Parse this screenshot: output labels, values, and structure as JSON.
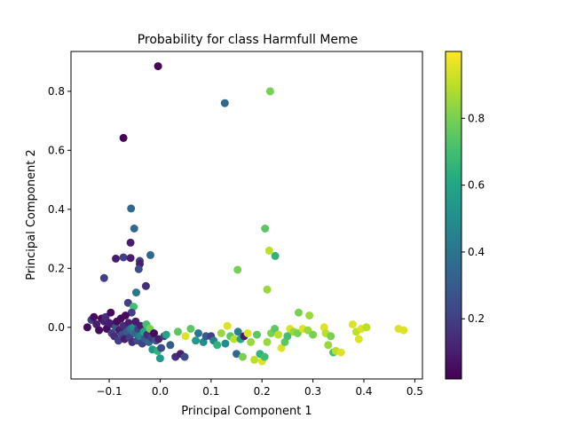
{
  "chart_data": {
    "type": "scatter",
    "title": "Probability for class Harmfull Meme",
    "xlabel": "Principal Component 1",
    "ylabel": "Principal Component 2",
    "xlim": [
      -0.175,
      0.515
    ],
    "ylim": [
      -0.175,
      0.935
    ],
    "xticks": [
      -0.1,
      0.0,
      0.1,
      0.2,
      0.3,
      0.4,
      0.5
    ],
    "xtick_labels": [
      "−0.1",
      "0.0",
      "0.1",
      "0.2",
      "0.3",
      "0.4",
      "0.5"
    ],
    "yticks": [
      0.0,
      0.2,
      0.4,
      0.6,
      0.8
    ],
    "ytick_labels": [
      "0.0",
      "0.2",
      "0.4",
      "0.6",
      "0.8"
    ],
    "colorbar": {
      "colormap": "viridis",
      "range": [
        0.02,
        1.0
      ],
      "ticks": [
        0.2,
        0.4,
        0.6,
        0.8
      ],
      "tick_labels": [
        "0.2",
        "0.4",
        "0.6",
        "0.8"
      ]
    },
    "grid": false,
    "points": [
      {
        "x": -0.004,
        "y": 0.885,
        "c": 0.03
      },
      {
        "x": 0.127,
        "y": 0.76,
        "c": 0.35
      },
      {
        "x": 0.216,
        "y": 0.8,
        "c": 0.8
      },
      {
        "x": -0.072,
        "y": 0.642,
        "c": 0.03
      },
      {
        "x": -0.057,
        "y": 0.403,
        "c": 0.35
      },
      {
        "x": -0.051,
        "y": 0.335,
        "c": 0.35
      },
      {
        "x": -0.058,
        "y": 0.287,
        "c": 0.1
      },
      {
        "x": -0.087,
        "y": 0.233,
        "c": 0.1
      },
      {
        "x": -0.072,
        "y": 0.237,
        "c": 0.2
      },
      {
        "x": -0.058,
        "y": 0.235,
        "c": 0.1
      },
      {
        "x": -0.04,
        "y": 0.225,
        "c": 0.2
      },
      {
        "x": -0.04,
        "y": 0.215,
        "c": 0.1
      },
      {
        "x": -0.042,
        "y": 0.197,
        "c": 0.25
      },
      {
        "x": -0.019,
        "y": 0.245,
        "c": 0.35
      },
      {
        "x": -0.11,
        "y": 0.167,
        "c": 0.2
      },
      {
        "x": -0.028,
        "y": 0.14,
        "c": 0.15
      },
      {
        "x": -0.047,
        "y": 0.118,
        "c": 0.4
      },
      {
        "x": -0.063,
        "y": 0.083,
        "c": 0.2
      },
      {
        "x": -0.052,
        "y": 0.07,
        "c": 0.7
      },
      {
        "x": -0.056,
        "y": 0.05,
        "c": 0.2
      },
      {
        "x": 0.206,
        "y": 0.335,
        "c": 0.75
      },
      {
        "x": 0.214,
        "y": 0.26,
        "c": 0.9
      },
      {
        "x": 0.226,
        "y": 0.242,
        "c": 0.65
      },
      {
        "x": 0.152,
        "y": 0.195,
        "c": 0.8
      },
      {
        "x": 0.21,
        "y": 0.128,
        "c": 0.85
      },
      {
        "x": 0.272,
        "y": 0.05,
        "c": 0.8
      },
      {
        "x": 0.293,
        "y": 0.04,
        "c": 0.85
      },
      {
        "x": -0.143,
        "y": 0.0,
        "c": 0.05
      },
      {
        "x": -0.135,
        "y": 0.025,
        "c": 0.2
      },
      {
        "x": -0.13,
        "y": 0.035,
        "c": 0.05
      },
      {
        "x": -0.125,
        "y": 0.01,
        "c": 0.1
      },
      {
        "x": -0.12,
        "y": -0.01,
        "c": 0.05
      },
      {
        "x": -0.115,
        "y": 0.03,
        "c": 0.05
      },
      {
        "x": -0.11,
        "y": 0.02,
        "c": 0.1
      },
      {
        "x": -0.107,
        "y": 0.035,
        "c": 0.15
      },
      {
        "x": -0.105,
        "y": -0.005,
        "c": 0.05
      },
      {
        "x": -0.1,
        "y": 0.015,
        "c": 0.1
      },
      {
        "x": -0.097,
        "y": 0.05,
        "c": 0.05
      },
      {
        "x": -0.095,
        "y": -0.02,
        "c": 0.2
      },
      {
        "x": -0.093,
        "y": 0.01,
        "c": 0.1
      },
      {
        "x": -0.09,
        "y": -0.03,
        "c": 0.15
      },
      {
        "x": -0.087,
        "y": 0.0,
        "c": 0.3
      },
      {
        "x": -0.085,
        "y": 0.02,
        "c": 0.05
      },
      {
        "x": -0.082,
        "y": -0.045,
        "c": 0.2
      },
      {
        "x": -0.08,
        "y": -0.01,
        "c": 0.1
      },
      {
        "x": -0.077,
        "y": 0.03,
        "c": 0.05
      },
      {
        "x": -0.075,
        "y": -0.025,
        "c": 0.25
      },
      {
        "x": -0.072,
        "y": 0.005,
        "c": 0.15
      },
      {
        "x": -0.07,
        "y": -0.04,
        "c": 0.1
      },
      {
        "x": -0.068,
        "y": 0.04,
        "c": 0.05
      },
      {
        "x": -0.065,
        "y": -0.015,
        "c": 0.3
      },
      {
        "x": -0.062,
        "y": 0.015,
        "c": 0.1
      },
      {
        "x": -0.06,
        "y": -0.035,
        "c": 0.2
      },
      {
        "x": -0.058,
        "y": -0.005,
        "c": 0.4
      },
      {
        "x": -0.055,
        "y": -0.05,
        "c": 0.15
      },
      {
        "x": -0.052,
        "y": 0.0,
        "c": 0.5
      },
      {
        "x": -0.05,
        "y": -0.02,
        "c": 0.35
      },
      {
        "x": -0.048,
        "y": 0.02,
        "c": 0.1
      },
      {
        "x": -0.045,
        "y": -0.045,
        "c": 0.25
      },
      {
        "x": -0.043,
        "y": -0.005,
        "c": 0.2
      },
      {
        "x": -0.04,
        "y": -0.03,
        "c": 0.45
      },
      {
        "x": -0.038,
        "y": 0.005,
        "c": 0.1
      },
      {
        "x": -0.035,
        "y": -0.055,
        "c": 0.2
      },
      {
        "x": -0.032,
        "y": -0.015,
        "c": 0.6
      },
      {
        "x": -0.03,
        "y": -0.04,
        "c": 0.3
      },
      {
        "x": -0.027,
        "y": 0.01,
        "c": 0.7
      },
      {
        "x": -0.025,
        "y": -0.025,
        "c": 0.15
      },
      {
        "x": -0.022,
        "y": -0.05,
        "c": 0.35
      },
      {
        "x": -0.02,
        "y": -0.005,
        "c": 0.8
      },
      {
        "x": -0.017,
        "y": -0.035,
        "c": 0.2
      },
      {
        "x": -0.015,
        "y": -0.075,
        "c": 0.55
      },
      {
        "x": -0.012,
        "y": -0.02,
        "c": 0.05
      },
      {
        "x": -0.008,
        "y": -0.045,
        "c": 0.3
      },
      {
        "x": -0.005,
        "y": -0.08,
        "c": 0.65
      },
      {
        "x": -0.003,
        "y": -0.04,
        "c": 0.1
      },
      {
        "x": 0.0,
        "y": -0.105,
        "c": 0.55
      },
      {
        "x": 0.002,
        "y": -0.07,
        "c": 0.25
      },
      {
        "x": 0.008,
        "y": -0.03,
        "c": 0.2
      },
      {
        "x": 0.012,
        "y": -0.025,
        "c": 0.6
      },
      {
        "x": 0.02,
        "y": -0.06,
        "c": 0.3
      },
      {
        "x": 0.03,
        "y": -0.1,
        "c": 0.15
      },
      {
        "x": 0.035,
        "y": -0.015,
        "c": 0.75
      },
      {
        "x": 0.04,
        "y": -0.09,
        "c": 0.1
      },
      {
        "x": 0.048,
        "y": -0.1,
        "c": 0.25
      },
      {
        "x": 0.05,
        "y": -0.03,
        "c": 0.95
      },
      {
        "x": 0.06,
        "y": -0.005,
        "c": 0.75
      },
      {
        "x": 0.07,
        "y": -0.045,
        "c": 0.55
      },
      {
        "x": 0.075,
        "y": -0.02,
        "c": 0.4
      },
      {
        "x": 0.085,
        "y": -0.05,
        "c": 0.5
      },
      {
        "x": 0.09,
        "y": -0.03,
        "c": 0.3
      },
      {
        "x": 0.1,
        "y": -0.03,
        "c": 0.2
      },
      {
        "x": 0.105,
        "y": -0.045,
        "c": 0.45
      },
      {
        "x": 0.112,
        "y": -0.06,
        "c": 0.65
      },
      {
        "x": 0.12,
        "y": -0.02,
        "c": 0.85
      },
      {
        "x": 0.128,
        "y": -0.055,
        "c": 0.5
      },
      {
        "x": 0.132,
        "y": 0.005,
        "c": 0.95
      },
      {
        "x": 0.138,
        "y": -0.03,
        "c": 0.75
      },
      {
        "x": 0.145,
        "y": -0.04,
        "c": 0.9
      },
      {
        "x": 0.15,
        "y": -0.09,
        "c": 0.35
      },
      {
        "x": 0.153,
        "y": -0.015,
        "c": 0.45
      },
      {
        "x": 0.158,
        "y": -0.04,
        "c": 0.6
      },
      {
        "x": 0.162,
        "y": -0.1,
        "c": 0.8
      },
      {
        "x": 0.165,
        "y": -0.03,
        "c": 0.1
      },
      {
        "x": 0.172,
        "y": -0.02,
        "c": 0.95
      },
      {
        "x": 0.178,
        "y": -0.05,
        "c": 0.85
      },
      {
        "x": 0.185,
        "y": -0.11,
        "c": 0.9
      },
      {
        "x": 0.19,
        "y": -0.025,
        "c": 0.75
      },
      {
        "x": 0.196,
        "y": -0.09,
        "c": 0.65
      },
      {
        "x": 0.2,
        "y": -0.115,
        "c": 0.95
      },
      {
        "x": 0.205,
        "y": -0.1,
        "c": 0.7
      },
      {
        "x": 0.21,
        "y": -0.05,
        "c": 0.85
      },
      {
        "x": 0.218,
        "y": -0.02,
        "c": 0.8
      },
      {
        "x": 0.225,
        "y": -0.005,
        "c": 0.75
      },
      {
        "x": 0.232,
        "y": -0.025,
        "c": 0.9
      },
      {
        "x": 0.238,
        "y": -0.07,
        "c": 0.95
      },
      {
        "x": 0.245,
        "y": -0.05,
        "c": 0.75
      },
      {
        "x": 0.25,
        "y": -0.03,
        "c": 0.7
      },
      {
        "x": 0.255,
        "y": -0.005,
        "c": 0.95
      },
      {
        "x": 0.262,
        "y": -0.015,
        "c": 0.85
      },
      {
        "x": 0.27,
        "y": -0.02,
        "c": 0.8
      },
      {
        "x": 0.28,
        "y": -0.005,
        "c": 0.95
      },
      {
        "x": 0.29,
        "y": -0.01,
        "c": 0.85
      },
      {
        "x": 0.3,
        "y": -0.025,
        "c": 0.8
      },
      {
        "x": 0.322,
        "y": 0.0,
        "c": 0.95
      },
      {
        "x": 0.325,
        "y": -0.02,
        "c": 0.9
      },
      {
        "x": 0.33,
        "y": -0.06,
        "c": 0.85
      },
      {
        "x": 0.335,
        "y": -0.03,
        "c": 0.8
      },
      {
        "x": 0.34,
        "y": -0.085,
        "c": 0.7
      },
      {
        "x": 0.345,
        "y": -0.08,
        "c": 0.9
      },
      {
        "x": 0.355,
        "y": -0.085,
        "c": 0.95
      },
      {
        "x": 0.378,
        "y": 0.01,
        "c": 0.95
      },
      {
        "x": 0.385,
        "y": -0.015,
        "c": 0.9
      },
      {
        "x": 0.39,
        "y": -0.04,
        "c": 0.95
      },
      {
        "x": 0.395,
        "y": -0.005,
        "c": 0.95
      },
      {
        "x": 0.405,
        "y": 0.0,
        "c": 0.9
      },
      {
        "x": 0.468,
        "y": -0.005,
        "c": 0.95
      },
      {
        "x": 0.478,
        "y": -0.01,
        "c": 0.95
      }
    ]
  }
}
